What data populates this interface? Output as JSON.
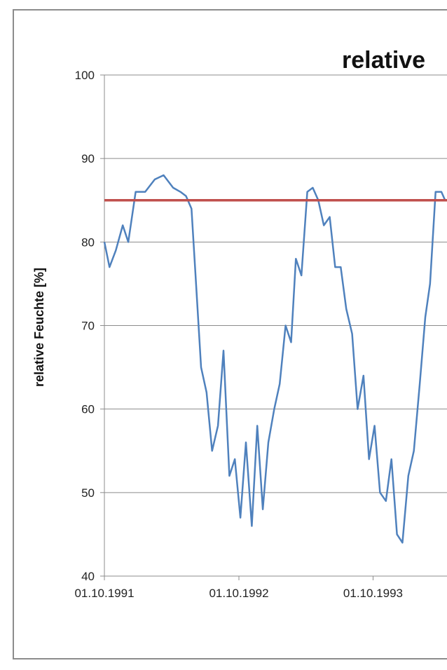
{
  "chart_data": {
    "type": "line",
    "title": "relative",
    "xlabel": "",
    "ylabel": "relative Feuchte [%]",
    "ylim": [
      40,
      100
    ],
    "yticks": [
      40,
      50,
      60,
      70,
      80,
      90,
      100
    ],
    "xlim": [
      "1991-10-01",
      "1994-04-15"
    ],
    "xticks": [
      {
        "date": "1991-10-01",
        "label": "01.10.1991"
      },
      {
        "date": "1992-10-01",
        "label": "01.10.1992"
      },
      {
        "date": "1993-10-01",
        "label": "01.10.1993"
      }
    ],
    "grid": "horizontal",
    "threshold": {
      "value": 85,
      "color": "#c0504d"
    },
    "series": [
      {
        "color": "#4f81bd",
        "points": [
          [
            "1991-10-01",
            80
          ],
          [
            "1991-10-15",
            77
          ],
          [
            "1991-11-01",
            79
          ],
          [
            "1991-11-20",
            82
          ],
          [
            "1991-12-05",
            80
          ],
          [
            "1991-12-25",
            86
          ],
          [
            "1992-01-20",
            86
          ],
          [
            "1992-02-15",
            87.5
          ],
          [
            "1992-03-10",
            88
          ],
          [
            "1992-04-05",
            86.5
          ],
          [
            "1992-04-25",
            86
          ],
          [
            "1992-05-10",
            85.5
          ],
          [
            "1992-05-25",
            84
          ],
          [
            "1992-06-05",
            76
          ],
          [
            "1992-06-20",
            65
          ],
          [
            "1992-07-05",
            62
          ],
          [
            "1992-07-20",
            55
          ],
          [
            "1992-08-05",
            58
          ],
          [
            "1992-08-20",
            67
          ],
          [
            "1992-09-05",
            52
          ],
          [
            "1992-09-20",
            54
          ],
          [
            "1992-10-05",
            47
          ],
          [
            "1992-10-20",
            56
          ],
          [
            "1992-11-05",
            46
          ],
          [
            "1992-11-20",
            58
          ],
          [
            "1992-12-05",
            48
          ],
          [
            "1992-12-20",
            56
          ],
          [
            "1993-01-05",
            60
          ],
          [
            "1993-01-20",
            63
          ],
          [
            "1993-02-05",
            70
          ],
          [
            "1993-02-20",
            68
          ],
          [
            "1993-03-05",
            78
          ],
          [
            "1993-03-20",
            76
          ],
          [
            "1993-04-05",
            86
          ],
          [
            "1993-04-20",
            86.5
          ],
          [
            "1993-05-05",
            85
          ],
          [
            "1993-05-20",
            82
          ],
          [
            "1993-06-05",
            83
          ],
          [
            "1993-06-20",
            77
          ],
          [
            "1993-07-05",
            77
          ],
          [
            "1993-07-20",
            72
          ],
          [
            "1993-08-05",
            69
          ],
          [
            "1993-08-20",
            60
          ],
          [
            "1993-09-05",
            64
          ],
          [
            "1993-09-20",
            54
          ],
          [
            "1993-10-05",
            58
          ],
          [
            "1993-10-20",
            50
          ],
          [
            "1993-11-05",
            49
          ],
          [
            "1993-11-20",
            54
          ],
          [
            "1993-12-05",
            45
          ],
          [
            "1993-12-20",
            44
          ],
          [
            "1994-01-05",
            52
          ],
          [
            "1994-01-20",
            55
          ],
          [
            "1994-02-05",
            63
          ],
          [
            "1994-02-20",
            71
          ],
          [
            "1994-03-05",
            75
          ],
          [
            "1994-03-20",
            86
          ],
          [
            "1994-04-05",
            86
          ],
          [
            "1994-04-15",
            85
          ]
        ]
      }
    ]
  }
}
